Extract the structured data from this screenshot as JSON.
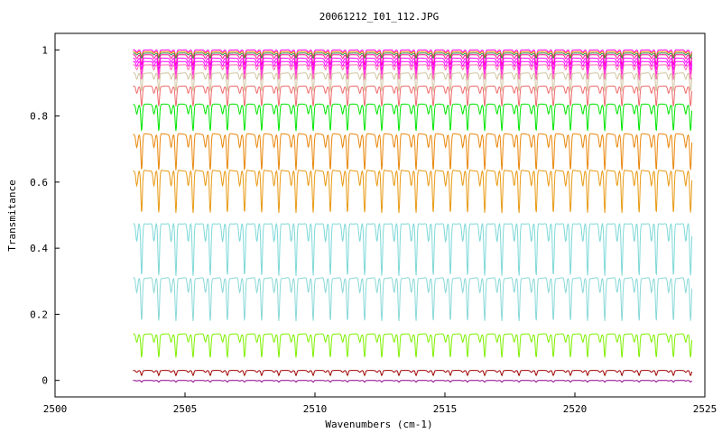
{
  "chart_data": {
    "type": "line",
    "title": "20061212_I01_112.JPG",
    "xlabel": "Wavenumbers (cm-1)",
    "ylabel": "Transmitance",
    "xlim": [
      2500,
      2525
    ],
    "ylim": [
      -0.05,
      1.05
    ],
    "x_ticks": [
      2500,
      2505,
      2510,
      2515,
      2520,
      2525
    ],
    "x_tick_labels": [
      "2500",
      "2505",
      "2510",
      "2515",
      "2520",
      "2525"
    ],
    "y_ticks": [
      0,
      0.2,
      0.4,
      0.6,
      0.8,
      1
    ],
    "y_tick_labels": [
      "0",
      "0.2",
      "0.4",
      "0.6",
      "0.8",
      "1"
    ],
    "grid": false,
    "legend": "none",
    "x_data_range": [
      2503.0,
      2524.5
    ],
    "line_spacing_cm1": 0.66,
    "series": [
      {
        "color": "#ff00ff",
        "baseline": 1.0,
        "depth": 0.02
      },
      {
        "color": "#ff8c00",
        "baseline": 0.995,
        "depth": 0.015
      },
      {
        "color": "#2e8b57",
        "baseline": 0.99,
        "depth": 0.015
      },
      {
        "color": "#ff1493",
        "baseline": 0.985,
        "depth": 0.03
      },
      {
        "color": "#ff00ff",
        "baseline": 0.975,
        "depth": 0.035
      },
      {
        "color": "#ff00ff",
        "baseline": 0.965,
        "depth": 0.04
      },
      {
        "color": "#ff69b4",
        "baseline": 0.955,
        "depth": 0.045
      },
      {
        "color": "#d2c4a0",
        "baseline": 0.93,
        "depth": 0.055
      },
      {
        "color": "#ee6a6a",
        "baseline": 0.89,
        "depth": 0.06
      },
      {
        "color": "#00e400",
        "baseline": 0.835,
        "depth": 0.08
      },
      {
        "color": "#e8870c",
        "baseline": 0.745,
        "depth": 0.11
      },
      {
        "color": "#e89a14",
        "baseline": 0.635,
        "depth": 0.13
      },
      {
        "color": "#7fd8d8",
        "baseline": 0.475,
        "depth": 0.16
      },
      {
        "color": "#8ad8d8",
        "baseline": 0.31,
        "depth": 0.13
      },
      {
        "color": "#7ff000",
        "baseline": 0.14,
        "depth": 0.07
      },
      {
        "color": "#a00000",
        "baseline": 0.03,
        "depth": 0.015
      },
      {
        "color": "#8b008b",
        "baseline": 0.0,
        "depth": 0.005
      }
    ]
  }
}
